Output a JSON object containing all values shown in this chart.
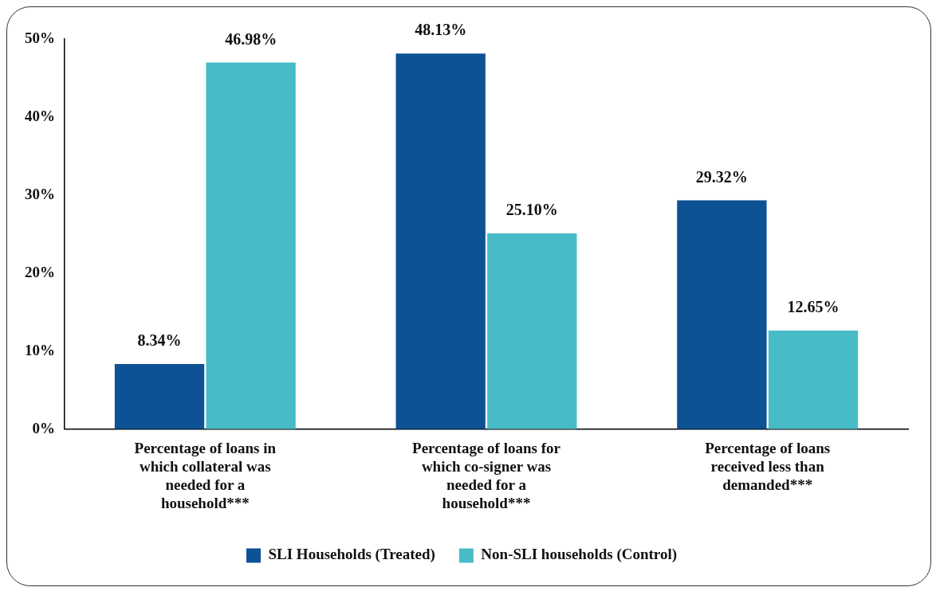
{
  "chart_data": {
    "type": "bar",
    "categories": [
      "Percentage of loans in which collateral was needed for a household***",
      "Percentage of loans for which co-signer was needed for a household***",
      "Percentage of loans received less than demanded***"
    ],
    "series": [
      {
        "name": "SLI Households (Treated)",
        "color": "#0d5294",
        "values": [
          8.34,
          48.13,
          29.32
        ],
        "value_labels": [
          "8.34%",
          "48.13%",
          "29.32%"
        ]
      },
      {
        "name": "Non-SLI households (Control)",
        "color": "#47bcc6",
        "values": [
          46.98,
          25.1,
          12.65
        ],
        "value_labels": [
          "46.98%",
          "25.10%",
          "12.65%"
        ]
      }
    ],
    "ylim": [
      0,
      50
    ],
    "yticks": [
      {
        "value": 0,
        "label": "0%"
      },
      {
        "value": 10,
        "label": "10%"
      },
      {
        "value": 20,
        "label": "20%"
      },
      {
        "value": 30,
        "label": "30%"
      },
      {
        "value": 40,
        "label": "40%"
      },
      {
        "value": 50,
        "label": "50%"
      }
    ],
    "grid": false,
    "legend": "bottom"
  }
}
